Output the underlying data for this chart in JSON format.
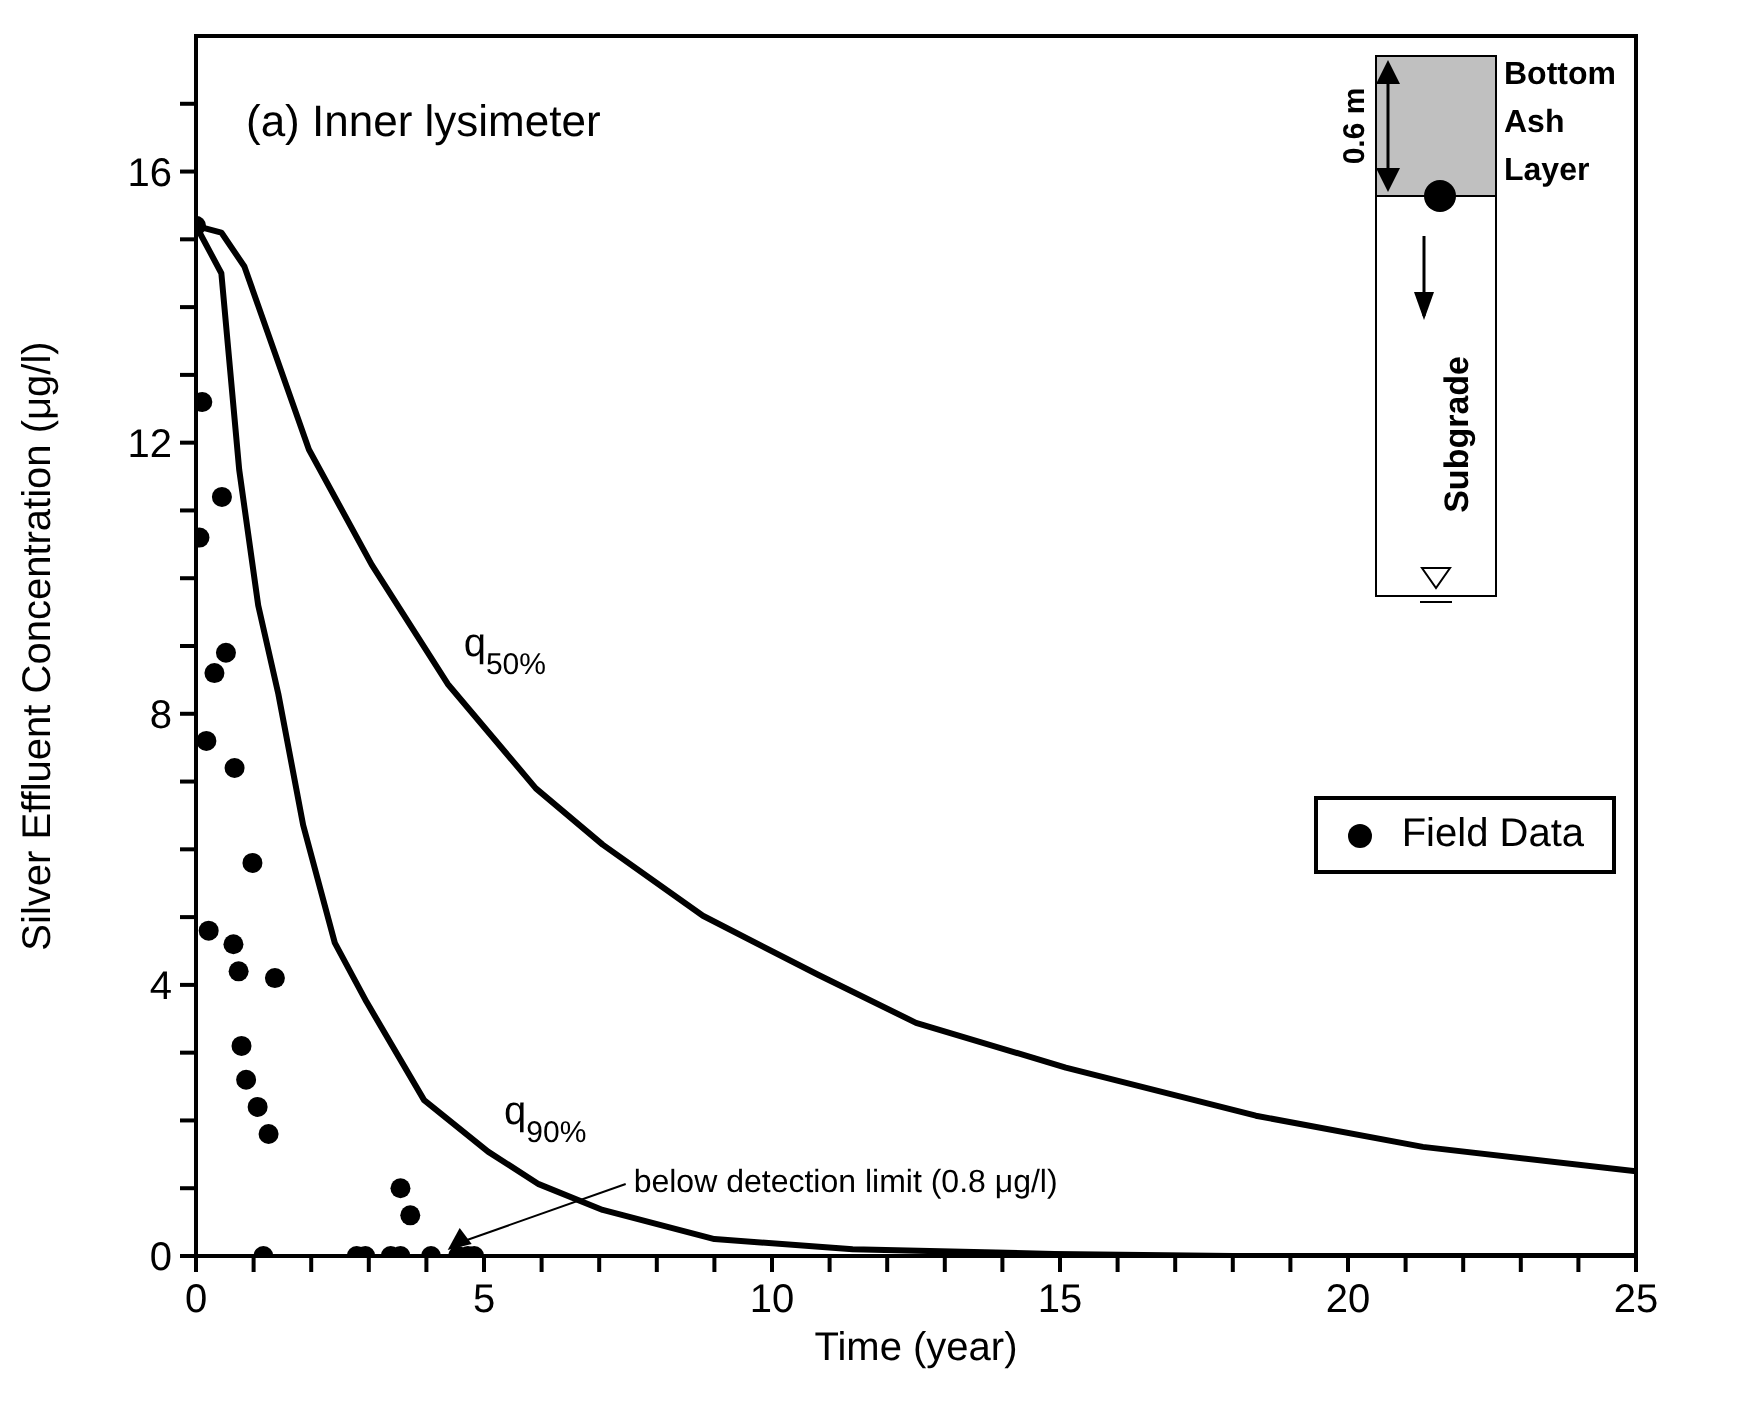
{
  "chart_data": {
    "type": "line",
    "title": "(a) Inner lysimeter",
    "xlabel": "Time (year)",
    "ylabel": "Silver Effluent Concentration (μg/l)",
    "xlim": [
      0,
      25
    ],
    "ylim": [
      0,
      18
    ],
    "xticks": [
      0,
      {
        "value": 1,
        "label": null
      },
      {
        "value": 2,
        "label": null
      },
      {
        "value": 3,
        "label": null
      },
      {
        "value": 4,
        "label": null
      },
      5,
      {
        "value": 6,
        "label": null
      },
      {
        "value": 7,
        "label": null
      },
      {
        "value": 8,
        "label": null
      },
      {
        "value": 9,
        "label": null
      },
      10,
      {
        "value": 11,
        "label": null
      },
      {
        "value": 12,
        "label": null
      },
      {
        "value": 13,
        "label": null
      },
      {
        "value": 14,
        "label": null
      },
      15,
      {
        "value": 16,
        "label": null
      },
      {
        "value": 17,
        "label": null
      },
      {
        "value": 18,
        "label": null
      },
      {
        "value": 19,
        "label": null
      },
      20,
      {
        "value": 21,
        "label": null
      },
      {
        "value": 22,
        "label": null
      },
      {
        "value": 23,
        "label": null
      },
      {
        "value": 24,
        "label": null
      },
      25
    ],
    "yticks": [
      0,
      {
        "value": 1,
        "label": null
      },
      {
        "value": 2,
        "label": null
      },
      {
        "value": 3,
        "label": null
      },
      4,
      {
        "value": 5,
        "label": null
      },
      {
        "value": 6,
        "label": null
      },
      {
        "value": 7,
        "label": null
      },
      8,
      {
        "value": 9,
        "label": null
      },
      {
        "value": 10,
        "label": null
      },
      {
        "value": 11,
        "label": null
      },
      12,
      {
        "value": 13,
        "label": null
      },
      {
        "value": 14,
        "label": null
      },
      {
        "value": 15,
        "label": null
      },
      16,
      {
        "value": 17,
        "label": null
      }
    ],
    "legend": "bottom right",
    "marker": "none",
    "line_style": "solid",
    "series": [
      {
        "name": "q$_{50%}$",
        "type": "line",
        "color": "#000000",
        "x": [
          0,
          0.44,
          0.84,
          1.96,
          3.05,
          4.37,
          5.9,
          7.06,
          8.8,
          10.8,
          12.5,
          15.1,
          18.4,
          21.3,
          25
        ],
        "values": [
          15.2,
          15.1,
          14.6,
          11.9,
          10.2,
          8.44,
          6.9,
          6.07,
          5.02,
          4.15,
          3.44,
          2.78,
          2.07,
          1.61,
          1.25
        ]
      },
      {
        "name": "q$_{90%}$",
        "type": "line",
        "color": "#000000",
        "x": [
          0,
          0.44,
          0.75,
          1.08,
          1.43,
          1.86,
          2.41,
          2.96,
          3.96,
          5.07,
          5.95,
          7.06,
          9.0,
          11.4,
          14.9,
          18,
          25
        ],
        "values": [
          15.2,
          14.5,
          11.6,
          9.6,
          8.29,
          6.36,
          4.62,
          3.75,
          2.3,
          1.54,
          1.06,
          0.68,
          0.25,
          0.1,
          0.03,
          0,
          0
        ]
      },
      {
        "name": "Field Data",
        "type": "scatter",
        "marker": "circle",
        "color": "#000000",
        "x": [
          0,
          0.11,
          0.45,
          0.06,
          0.52,
          0.32,
          0.18,
          0.67,
          0.98,
          0.22,
          0.65,
          0.74,
          1.37,
          0.79,
          0.87,
          1.07,
          1.26,
          3.55,
          3.72,
          1.17,
          2.79,
          2.94,
          3.38,
          3.55,
          4.08,
          4.55,
          4.72,
          4.83
        ],
        "values": [
          15.2,
          12.6,
          11.2,
          10.6,
          8.9,
          8.6,
          7.6,
          7.2,
          5.8,
          4.8,
          4.6,
          4.2,
          4.1,
          3.1,
          2.6,
          2.2,
          1.8,
          1.0,
          0.6,
          0,
          0,
          0,
          0,
          0,
          0,
          0,
          0,
          0
        ]
      }
    ],
    "annotations": [
      {
        "text": "below detection limit (0.8 μg/l)",
        "x": 4.3,
        "y": 0
      },
      "0.6 m",
      "Bottom Ash Layer",
      "Subgrade"
    ]
  }
}
